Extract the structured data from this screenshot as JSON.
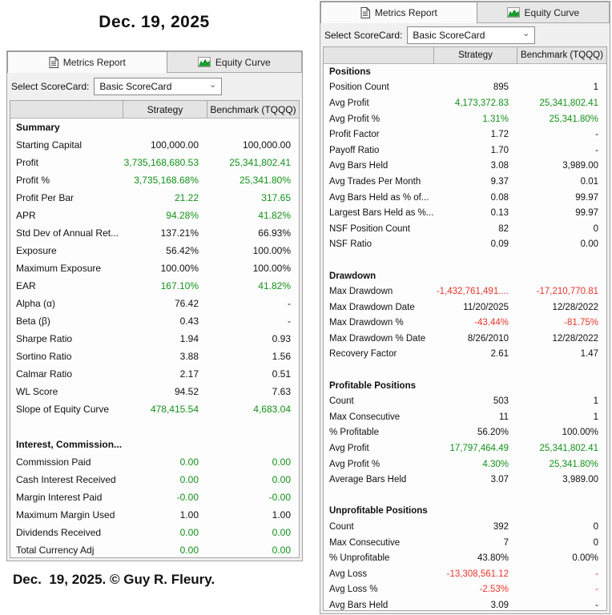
{
  "title": "Dec. 19, 2025",
  "footer": "Dec.  19, 2025. © Guy R. Fleury.",
  "colors": {
    "positive": "#13911a",
    "negative": "#ea352c",
    "accent_green_icon": "#18a02c"
  },
  "tabs": {
    "metrics": "Metrics Report",
    "equity": "Equity Curve"
  },
  "scorecard": {
    "label": "Select ScoreCard:",
    "value": "Basic ScoreCard"
  },
  "columns": {
    "0": "Strategy",
    "1": "Benchmark (TQQQ)"
  },
  "left_panel": {
    "sections": [
      {
        "title": "Summary",
        "rows": [
          [
            "Starting Capital",
            "100,000.00",
            "100,000.00",
            "",
            ""
          ],
          [
            "Profit",
            "3,735,168,680.53",
            "25,341,802.41",
            "g",
            "g"
          ],
          [
            "Profit %",
            "3,735,168.68%",
            "25,341.80%",
            "g",
            "g"
          ],
          [
            "Profit Per Bar",
            "21.22",
            "317.65",
            "g",
            "g"
          ],
          [
            "APR",
            "94.28%",
            "41.82%",
            "g",
            "g"
          ],
          [
            "Std Dev of Annual Ret...",
            "137.21%",
            "66.93%",
            "",
            ""
          ],
          [
            "Exposure",
            "56.42%",
            "100.00%",
            "",
            ""
          ],
          [
            "Maximum Exposure",
            "100.00%",
            "100.00%",
            "",
            ""
          ],
          [
            "EAR",
            "167.10%",
            "41.82%",
            "g",
            "g"
          ],
          [
            "Alpha (α)",
            "76.42",
            "-",
            "",
            ""
          ],
          [
            "Beta (β)",
            "0.43",
            "-",
            "",
            ""
          ],
          [
            "Sharpe Ratio",
            "1.94",
            "0.93",
            "",
            ""
          ],
          [
            "Sortino Ratio",
            "3.88",
            "1.56",
            "",
            ""
          ],
          [
            "Calmar Ratio",
            "2.17",
            "0.51",
            "",
            ""
          ],
          [
            "WL Score",
            "94.52",
            "7.63",
            "",
            ""
          ],
          [
            "Slope of Equity Curve",
            "478,415.54",
            "4,683.04",
            "g",
            "g"
          ]
        ]
      },
      {
        "title": "Interest, Commission...",
        "rows": [
          [
            "Commission Paid",
            "0.00",
            "0.00",
            "g",
            "g"
          ],
          [
            "Cash Interest Received",
            "0.00",
            "0.00",
            "g",
            "g"
          ],
          [
            "Margin Interest Paid",
            "-0.00",
            "-0.00",
            "g",
            "g"
          ],
          [
            "Maximum Margin Used",
            "1.00",
            "1.00",
            "",
            ""
          ],
          [
            "Dividends Received",
            "0.00",
            "0.00",
            "g",
            "g"
          ],
          [
            "Total Currency Adj",
            "0.00",
            "0.00",
            "g",
            "g"
          ]
        ]
      }
    ]
  },
  "right_panel": {
    "sections": [
      {
        "title": "Positions",
        "rows": [
          [
            "Position Count",
            "895",
            "1",
            "",
            ""
          ],
          [
            "Avg Profit",
            "4,173,372.83",
            "25,341,802.41",
            "g",
            "g"
          ],
          [
            "Avg Profit %",
            "1.31%",
            "25,341.80%",
            "g",
            "g"
          ],
          [
            "Profit Factor",
            "1.72",
            "-",
            "",
            ""
          ],
          [
            "Payoff Ratio",
            "1.70",
            "-",
            "",
            ""
          ],
          [
            "Avg Bars Held",
            "3.08",
            "3,989.00",
            "",
            ""
          ],
          [
            "Avg Trades Per Month",
            "9.37",
            "0.01",
            "",
            ""
          ],
          [
            "Avg Bars Held as % of...",
            "0.08",
            "99.97",
            "",
            ""
          ],
          [
            "Largest Bars Held as %...",
            "0.13",
            "99.97",
            "",
            ""
          ],
          [
            "NSF Position Count",
            "82",
            "0",
            "",
            ""
          ],
          [
            "NSF Ratio",
            "0.09",
            "0.00",
            "",
            ""
          ]
        ]
      },
      {
        "title": "Drawdown",
        "rows": [
          [
            "Max Drawdown",
            "-1,432,761,491....",
            "-17,210,770.81",
            "r",
            "r"
          ],
          [
            "Max Drawdown Date",
            "11/20/2025",
            "12/28/2022",
            "",
            ""
          ],
          [
            "Max Drawdown %",
            "-43.44%",
            "-81.75%",
            "r",
            "r"
          ],
          [
            "Max Drawdown % Date",
            "8/26/2010",
            "12/28/2022",
            "",
            ""
          ],
          [
            "Recovery Factor",
            "2.61",
            "1.47",
            "",
            ""
          ]
        ]
      },
      {
        "title": "Profitable Positions",
        "rows": [
          [
            "Count",
            "503",
            "1",
            "",
            ""
          ],
          [
            "Max Consecutive",
            "11",
            "1",
            "",
            ""
          ],
          [
            "% Profitable",
            "56.20%",
            "100.00%",
            "",
            ""
          ],
          [
            "Avg Profit",
            "17,797,464.49",
            "25,341,802.41",
            "g",
            "g"
          ],
          [
            "Avg Profit %",
            "4.30%",
            "25,341.80%",
            "g",
            "g"
          ],
          [
            "Average Bars Held",
            "3.07",
            "3,989.00",
            "",
            ""
          ]
        ]
      },
      {
        "title": "Unprofitable Positions",
        "rows": [
          [
            "Count",
            "392",
            "0",
            "",
            ""
          ],
          [
            "Max Consecutive",
            "7",
            "0",
            "",
            ""
          ],
          [
            "% Unprofitable",
            "43.80%",
            "0.00%",
            "",
            ""
          ],
          [
            "Avg Loss",
            "-13,308,561.12",
            "-",
            "r",
            "r"
          ],
          [
            "Avg Loss %",
            "-2.53%",
            "-",
            "r",
            "r"
          ],
          [
            "Avg Bars Held",
            "3.09",
            "-",
            "",
            ""
          ]
        ]
      }
    ]
  }
}
